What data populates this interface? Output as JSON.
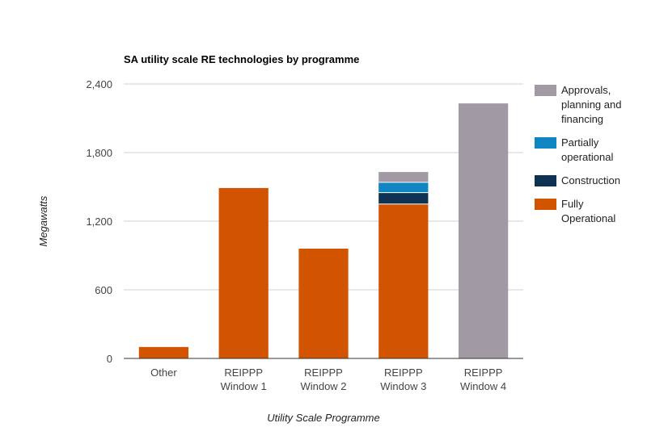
{
  "chart_data": {
    "type": "bar",
    "stacked": true,
    "title": "SA utility scale RE technologies by programme",
    "xlabel": "Utility Scale Programme",
    "ylabel": "Megawatts",
    "ylim": [
      0,
      2400
    ],
    "yticks": [
      "0",
      "600",
      "1,200",
      "1,800",
      "2,400"
    ],
    "ytick_values": [
      0,
      600,
      1200,
      1800,
      2400
    ],
    "grid": true,
    "legend_position": "right",
    "categories": [
      [
        "Other"
      ],
      [
        "REIPPP",
        "Window 1"
      ],
      [
        "REIPPP",
        "Window 2"
      ],
      [
        "REIPPP",
        "Window 3"
      ],
      [
        "REIPPP",
        "Window 4"
      ]
    ],
    "series": [
      {
        "name": "Fully Operational",
        "color": "#d35400",
        "values": [
          100,
          1490,
          960,
          1350,
          0
        ]
      },
      {
        "name": "Construction",
        "color": "#0e3252",
        "values": [
          0,
          0,
          0,
          100,
          0
        ]
      },
      {
        "name": "Partially operational",
        "color": "#0f85c2",
        "values": [
          0,
          0,
          0,
          90,
          0
        ]
      },
      {
        "name": "Approvals, planning and financing",
        "color": "#a19aa4",
        "values": [
          0,
          0,
          0,
          90,
          2230
        ]
      }
    ],
    "legend": [
      {
        "lines": [
          "Approvals,",
          "planning and",
          "financing"
        ],
        "color": "#a19aa4"
      },
      {
        "lines": [
          "Partially",
          "operational"
        ],
        "color": "#0f85c2"
      },
      {
        "lines": [
          "Construction"
        ],
        "color": "#0e3252"
      },
      {
        "lines": [
          "Fully",
          "Operational"
        ],
        "color": "#d35400"
      }
    ]
  }
}
